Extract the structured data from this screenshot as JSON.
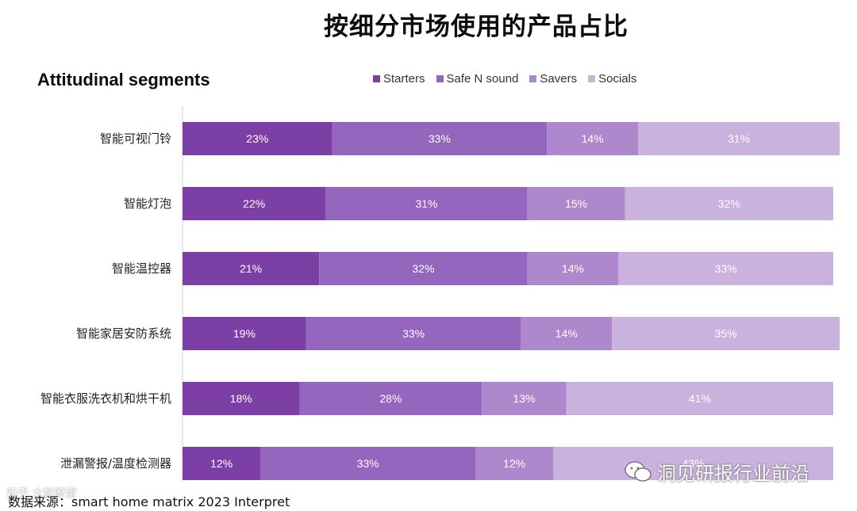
{
  "header": {
    "title": "按细分市场使用的产品占比",
    "subtitle": "Attitudinal segments"
  },
  "source": "数据来源：smart home matrix 2023 Interpret",
  "watermark": {
    "text": "洞见研报行业前沿",
    "small": "知乎 大数瞭望"
  },
  "chart_data": {
    "type": "bar",
    "orientation": "horizontal",
    "stacked": true,
    "categories": [
      "智能可视门铃",
      "智能灯泡",
      "智能温控器",
      "智能家居安防系统",
      "智能衣服洗衣机和烘干机",
      "泄漏警报/温度检测器"
    ],
    "series": [
      {
        "name": "Starters",
        "color": "#7b3fa5",
        "values": [
          23,
          22,
          21,
          19,
          18,
          12
        ]
      },
      {
        "name": "Safe N sound",
        "color": "#9466bd",
        "values": [
          33,
          31,
          32,
          33,
          28,
          33
        ]
      },
      {
        "name": "Savers",
        "color": "#ae88cc",
        "values": [
          14,
          15,
          14,
          14,
          13,
          12
        ]
      },
      {
        "name": "Socials",
        "color": "#c9b2de",
        "values": [
          31,
          32,
          33,
          35,
          41,
          43
        ]
      }
    ],
    "value_suffix": "%",
    "legend_position": "top",
    "grid": false
  }
}
